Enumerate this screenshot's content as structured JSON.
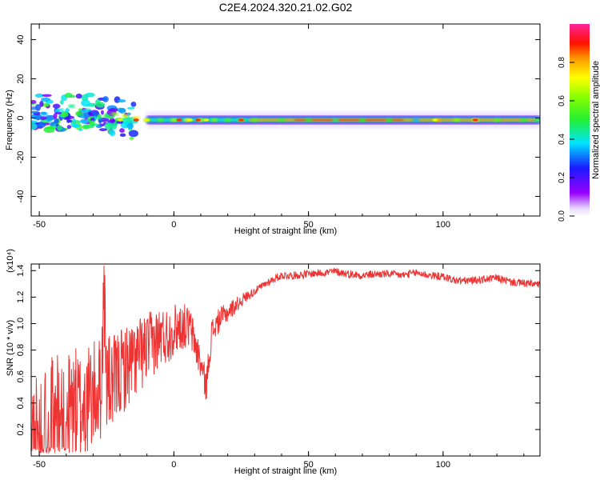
{
  "figure": {
    "title": "C2E4.2024.320.21.02.G02"
  },
  "chart_data": [
    {
      "type": "heatmap",
      "title": "C2E4.2024.320.21.02.G02",
      "xlabel": "Height of straight line (km)",
      "ylabel": "Frequency (Hz)",
      "xlim": [
        -53,
        136
      ],
      "ylim": [
        -50,
        48
      ],
      "xticks": [
        -50,
        0,
        50,
        100
      ],
      "yticks": [
        -40,
        -20,
        0,
        20,
        40
      ],
      "xtick_labels": [
        "-50",
        "0",
        "50",
        "100"
      ],
      "ytick_labels": [
        "-40",
        "-20",
        "0",
        "20",
        "40"
      ],
      "colorbar": {
        "label": "Normalized spectral amplitude",
        "range": [
          0,
          1
        ],
        "ticks": [
          "0.0",
          "0.2",
          "0.4",
          "0.6",
          "0.8"
        ],
        "tick_values": [
          0,
          0.2,
          0.4,
          0.6,
          0.8
        ],
        "colormap": "rainbow (violet-blue-cyan-green-yellow-red-magenta)"
      },
      "ridge_frequency_hz": -1,
      "series": [
        {
          "description_points": [
            [
              -52,
              5,
              0.3
            ],
            [
              -48,
              2,
              0.35
            ],
            [
              -45,
              -3,
              0.3
            ],
            [
              -42,
              4,
              0.4
            ],
            [
              -38,
              6,
              0.45
            ],
            [
              -35,
              2,
              0.5
            ],
            [
              -32,
              4,
              0.4
            ],
            [
              -28,
              0,
              0.45
            ],
            [
              -25,
              1,
              0.5
            ],
            [
              -22,
              2,
              0.6
            ],
            [
              -18,
              1,
              0.7
            ],
            [
              -14,
              0,
              0.75
            ],
            [
              -10,
              -1,
              0.6
            ],
            [
              -5,
              -1,
              0.55
            ],
            [
              0,
              -1,
              0.65
            ],
            [
              5,
              -1,
              0.7
            ],
            [
              10,
              -1,
              0.65
            ],
            [
              15,
              -1,
              0.6
            ],
            [
              20,
              -1,
              0.55
            ],
            [
              25,
              -1,
              0.6
            ],
            [
              30,
              -1,
              0.55
            ],
            [
              40,
              -1,
              0.5
            ],
            [
              50,
              -1,
              0.5
            ],
            [
              60,
              -1,
              0.45
            ],
            [
              70,
              -1,
              0.5
            ],
            [
              80,
              -1,
              0.5
            ],
            [
              90,
              -1,
              0.35
            ],
            [
              98,
              -1,
              0.8
            ],
            [
              105,
              -1,
              0.6
            ],
            [
              112,
              -1,
              0.7
            ],
            [
              120,
              -1,
              0.55
            ],
            [
              130,
              -1,
              0.5
            ],
            [
              135,
              -1,
              0.45
            ]
          ]
        }
      ]
    },
    {
      "type": "line",
      "xlabel": "Height of straight line (km)",
      "ylabel": "SNR (10 * v/v)",
      "y_multiplier_label": "(x10⁴)",
      "xlim": [
        -53,
        136
      ],
      "ylim": [
        0,
        1.45
      ],
      "xticks": [
        -50,
        0,
        50,
        100
      ],
      "yticks": [
        0.2,
        0.4,
        0.6,
        0.8,
        1.0,
        1.2,
        1.4
      ],
      "xtick_labels": [
        "-50",
        "0",
        "50",
        "100"
      ],
      "ytick_labels": [
        "0.2",
        "0.4",
        "0.6",
        "0.8",
        "1.0",
        "1.2",
        "1.4"
      ],
      "line_color": "#ee3333",
      "series": [
        {
          "x": [
            -53,
            -50,
            -47,
            -44,
            -41,
            -38,
            -35,
            -32,
            -29,
            -27,
            -26,
            -25,
            -23,
            -20,
            -17,
            -14,
            -11,
            -8,
            -5,
            -2,
            0,
            3,
            6,
            9,
            10,
            12,
            14,
            17,
            20,
            23,
            26,
            30,
            35,
            40,
            45,
            50,
            55,
            60,
            65,
            70,
            75,
            80,
            85,
            90,
            95,
            100,
            105,
            110,
            115,
            120,
            125,
            130,
            136
          ],
          "y": [
            0.2,
            0.25,
            0.3,
            0.35,
            0.4,
            0.45,
            0.45,
            0.5,
            0.55,
            0.6,
            1.38,
            0.65,
            0.6,
            0.7,
            0.75,
            0.8,
            0.85,
            0.9,
            0.95,
            0.95,
            1.0,
            1.02,
            1.0,
            0.8,
            0.72,
            0.55,
            0.95,
            1.05,
            1.1,
            1.15,
            1.2,
            1.25,
            1.32,
            1.37,
            1.37,
            1.38,
            1.39,
            1.4,
            1.38,
            1.37,
            1.38,
            1.38,
            1.37,
            1.39,
            1.37,
            1.36,
            1.33,
            1.33,
            1.34,
            1.35,
            1.32,
            1.31,
            1.3
          ],
          "noise": "high-frequency jitter with amplitude decreasing from ~0.6 at left to ~0.03 at right"
        }
      ]
    }
  ]
}
